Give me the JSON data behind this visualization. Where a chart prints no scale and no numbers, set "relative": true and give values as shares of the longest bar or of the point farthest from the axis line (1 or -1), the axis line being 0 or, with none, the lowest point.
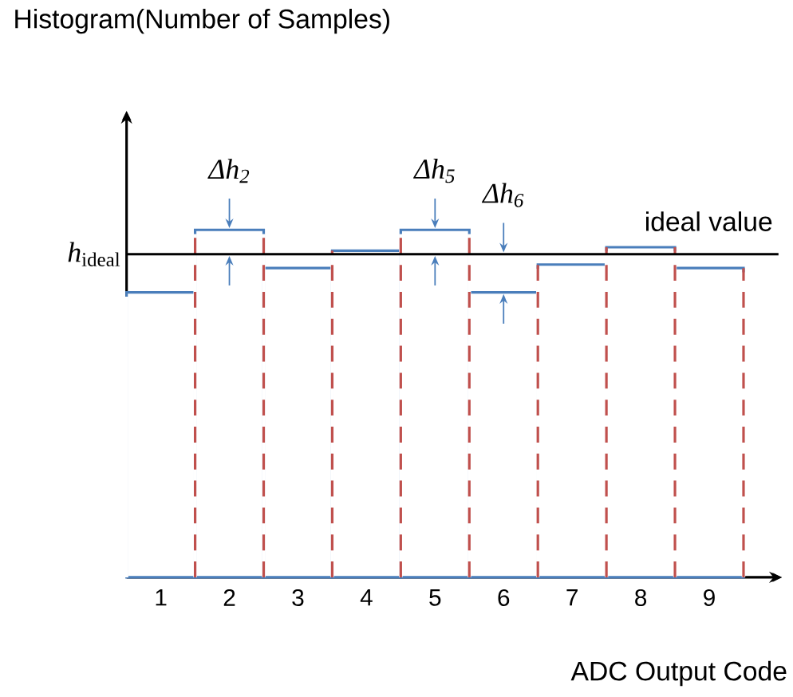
{
  "chart_data": {
    "type": "bar",
    "title": "Histogram(Number of Samples)",
    "xlabel": "ADC Output Code",
    "categories": [
      "1",
      "2",
      "3",
      "4",
      "5",
      "6",
      "7",
      "8",
      "9"
    ],
    "values": [
      0.82,
      1,
      0.89,
      0.94,
      1,
      0.82,
      0.9,
      0.95,
      0.89
    ],
    "color": "#4a7ebb",
    "relative": true,
    "ref_lines": [
      {
        "axis": "y",
        "value": 0.93,
        "label": "ideal value",
        "color": "#000000"
      }
    ],
    "annotations": [
      "*h*$_{ideal}$",
      {
        "text": "Δh$_{2}$",
        "x": "2",
        "y": 1
      },
      {
        "text": "Δh$_{5}$",
        "x": "5",
        "y": 1
      },
      {
        "text": "Δh$_{6}$",
        "x": "6",
        "y": 0.82
      }
    ],
    "tick_labels": "x"
  }
}
